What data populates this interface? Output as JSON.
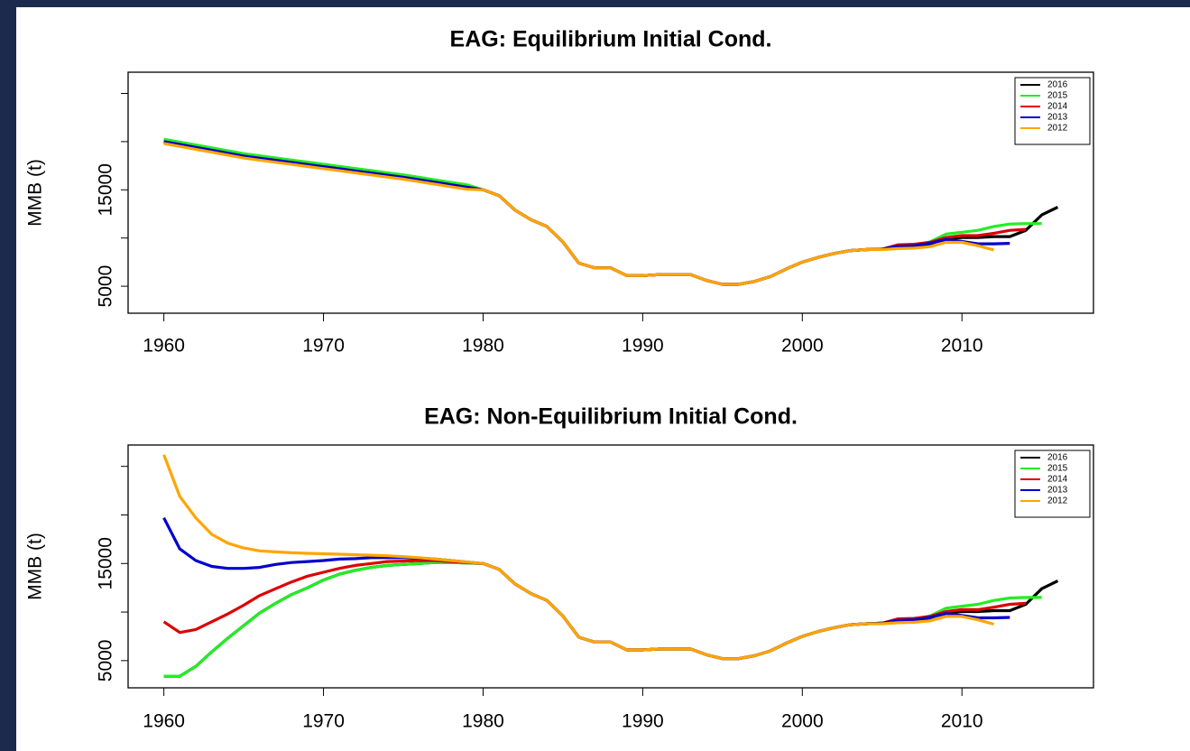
{
  "chart_data": [
    {
      "type": "line",
      "title": "EAG: Equilibrium Initial Cond.",
      "y_label": "MMB (t)",
      "x": [
        1960,
        1961,
        1962,
        1963,
        1964,
        1965,
        1966,
        1967,
        1968,
        1969,
        1970,
        1971,
        1972,
        1973,
        1974,
        1975,
        1976,
        1977,
        1978,
        1979,
        1980,
        1981,
        1982,
        1983,
        1984,
        1985,
        1986,
        1987,
        1988,
        1989,
        1990,
        1991,
        1992,
        1993,
        1994,
        1995,
        1996,
        1997,
        1998,
        1999,
        2000,
        2001,
        2002,
        2003,
        2004,
        2005,
        2006,
        2007,
        2008,
        2009,
        2010,
        2011,
        2012,
        2013,
        2014,
        2015,
        2016
      ],
      "xlim": [
        1957.76,
        2018.24
      ],
      "xticks": [
        1960,
        1970,
        1980,
        1990,
        2000,
        2010
      ],
      "ylim": [
        2200,
        27200
      ],
      "yticks": [
        5000,
        {
          "value": 10000,
          "label": null
        },
        15000,
        {
          "value": 20000,
          "label": null
        },
        {
          "value": 25000,
          "label": null
        }
      ],
      "legend": "topright",
      "series": [
        {
          "name": "2016",
          "color": "#000000",
          "values": [
            20000,
            19700,
            19400,
            19100,
            18800,
            18500,
            18280,
            18060,
            17840,
            17620,
            17400,
            17180,
            16960,
            16740,
            16520,
            16300,
            16040,
            15780,
            15520,
            15260,
            15000,
            14400,
            12900,
            11900,
            11200,
            9600,
            7400,
            6900,
            6900,
            6100,
            6100,
            6200,
            6200,
            6200,
            5600,
            5200,
            5200,
            5500,
            6000,
            6800,
            7500,
            8000,
            8400,
            8700,
            8800,
            8850,
            9100,
            9150,
            9400,
            9950,
            10050,
            10050,
            10150,
            10150,
            10800,
            12400,
            13200
          ]
        },
        {
          "name": "2015",
          "color": "#22ee22",
          "values": [
            20250,
            19950,
            19650,
            19350,
            19050,
            18750,
            18530,
            18310,
            18090,
            17870,
            17650,
            17430,
            17210,
            16990,
            16770,
            16550,
            16290,
            16030,
            15770,
            15510,
            15000,
            14400,
            12900,
            11900,
            11200,
            9600,
            7400,
            6900,
            6900,
            6100,
            6100,
            6200,
            6200,
            6200,
            5600,
            5200,
            5200,
            5500,
            6000,
            6800,
            7500,
            8000,
            8400,
            8700,
            8800,
            8850,
            9200,
            9250,
            9600,
            10400,
            10600,
            10800,
            11200,
            11450,
            11500,
            11500,
            null
          ]
        },
        {
          "name": "2014",
          "color": "#dd0000",
          "values": [
            20000,
            19700,
            19400,
            19100,
            18800,
            18500,
            18280,
            18060,
            17840,
            17620,
            17400,
            17180,
            16960,
            16740,
            16520,
            16300,
            16040,
            15780,
            15520,
            15260,
            15000,
            14400,
            12900,
            11900,
            11200,
            9600,
            7400,
            6900,
            6900,
            6100,
            6100,
            6200,
            6200,
            6200,
            5600,
            5200,
            5200,
            5500,
            6000,
            6800,
            7500,
            8000,
            8400,
            8700,
            8800,
            8850,
            9300,
            9350,
            9550,
            10050,
            10250,
            10250,
            10500,
            10800,
            10900,
            null,
            null
          ]
        },
        {
          "name": "2013",
          "color": "#0000cc",
          "values": [
            20000,
            19700,
            19400,
            19100,
            18800,
            18500,
            18280,
            18060,
            17840,
            17620,
            17400,
            17180,
            16960,
            16740,
            16520,
            16300,
            16040,
            15780,
            15520,
            15260,
            15000,
            14400,
            12900,
            11900,
            11200,
            9600,
            7400,
            6900,
            6900,
            6100,
            6100,
            6200,
            6200,
            6200,
            5600,
            5200,
            5200,
            5500,
            6000,
            6800,
            7500,
            8000,
            8400,
            8700,
            8800,
            8850,
            9150,
            9200,
            9450,
            9850,
            9650,
            9400,
            9400,
            9450,
            null,
            null,
            null
          ]
        },
        {
          "name": "2012",
          "color": "#ffa500",
          "values": [
            19800,
            19500,
            19200,
            18900,
            18600,
            18300,
            18080,
            17860,
            17640,
            17420,
            17200,
            16980,
            16760,
            16540,
            16320,
            16100,
            15840,
            15580,
            15320,
            15060,
            15000,
            14400,
            12900,
            11900,
            11200,
            9600,
            7400,
            6900,
            6900,
            6100,
            6100,
            6200,
            6200,
            6200,
            5600,
            5200,
            5200,
            5500,
            6000,
            6800,
            7500,
            8000,
            8400,
            8700,
            8800,
            8800,
            8900,
            8950,
            9100,
            9550,
            9550,
            9200,
            8750,
            null,
            null,
            null,
            null
          ]
        }
      ]
    },
    {
      "type": "line",
      "title": "EAG: Non-Equilibrium Initial Cond.",
      "y_label": "MMB (t)",
      "x": [
        1960,
        1961,
        1962,
        1963,
        1964,
        1965,
        1966,
        1967,
        1968,
        1969,
        1970,
        1971,
        1972,
        1973,
        1974,
        1975,
        1976,
        1977,
        1978,
        1979,
        1980,
        1981,
        1982,
        1983,
        1984,
        1985,
        1986,
        1987,
        1988,
        1989,
        1990,
        1991,
        1992,
        1993,
        1994,
        1995,
        1996,
        1997,
        1998,
        1999,
        2000,
        2001,
        2002,
        2003,
        2004,
        2005,
        2006,
        2007,
        2008,
        2009,
        2010,
        2011,
        2012,
        2013,
        2014,
        2015,
        2016
      ],
      "xlim": [
        1957.76,
        2018.24
      ],
      "xticks": [
        1960,
        1970,
        1980,
        1990,
        2000,
        2010
      ],
      "ylim": [
        2200,
        27200
      ],
      "yticks": [
        5000,
        {
          "value": 10000,
          "label": null
        },
        15000,
        {
          "value": 20000,
          "label": null
        },
        {
          "value": 25000,
          "label": null
        }
      ],
      "legend": "topright",
      "series": [
        {
          "name": "2016",
          "color": "#000000",
          "values": [
            3400,
            3400,
            4400,
            5900,
            7300,
            8600,
            9900,
            10900,
            11800,
            12500,
            13300,
            13900,
            14300,
            14600,
            14800,
            14900,
            15000,
            15100,
            15100,
            15050,
            15000,
            14400,
            12900,
            11900,
            11200,
            9600,
            7400,
            6900,
            6900,
            6100,
            6100,
            6200,
            6200,
            6200,
            5600,
            5200,
            5200,
            5500,
            6000,
            6800,
            7500,
            8000,
            8400,
            8700,
            8800,
            8850,
            9100,
            9150,
            9400,
            9950,
            10050,
            10050,
            10150,
            10150,
            10800,
            12400,
            13200
          ]
        },
        {
          "name": "2015",
          "color": "#22ee22",
          "values": [
            3400,
            3400,
            4400,
            5900,
            7300,
            8600,
            9900,
            10900,
            11800,
            12500,
            13300,
            13900,
            14300,
            14600,
            14800,
            14900,
            15000,
            15100,
            15100,
            15050,
            15000,
            14400,
            12900,
            11900,
            11200,
            9600,
            7400,
            6900,
            6900,
            6100,
            6100,
            6200,
            6200,
            6200,
            5600,
            5200,
            5200,
            5500,
            6000,
            6800,
            7500,
            8000,
            8400,
            8700,
            8800,
            8850,
            9200,
            9250,
            9600,
            10400,
            10600,
            10800,
            11200,
            11450,
            11500,
            11500,
            null
          ]
        },
        {
          "name": "2014",
          "color": "#dd0000",
          "values": [
            9000,
            7900,
            8200,
            9000,
            9800,
            10700,
            11700,
            12400,
            13100,
            13700,
            14100,
            14500,
            14800,
            15000,
            15200,
            15250,
            15300,
            15300,
            15200,
            15100,
            15000,
            14400,
            12900,
            11900,
            11200,
            9600,
            7400,
            6900,
            6900,
            6100,
            6100,
            6200,
            6200,
            6200,
            5600,
            5200,
            5200,
            5500,
            6000,
            6800,
            7500,
            8000,
            8400,
            8700,
            8800,
            8850,
            9300,
            9350,
            9550,
            10050,
            10250,
            10250,
            10500,
            10800,
            10900,
            null,
            null
          ]
        },
        {
          "name": "2013",
          "color": "#0000cc",
          "values": [
            19700,
            16500,
            15300,
            14700,
            14500,
            14500,
            14600,
            14900,
            15100,
            15200,
            15300,
            15450,
            15500,
            15600,
            15600,
            15600,
            15550,
            15450,
            15300,
            15150,
            15000,
            14400,
            12900,
            11900,
            11200,
            9600,
            7400,
            6900,
            6900,
            6100,
            6100,
            6200,
            6200,
            6200,
            5600,
            5200,
            5200,
            5500,
            6000,
            6800,
            7500,
            8000,
            8400,
            8700,
            8800,
            8850,
            9150,
            9200,
            9450,
            9850,
            9650,
            9400,
            9400,
            9450,
            null,
            null,
            null
          ]
        },
        {
          "name": "2012",
          "color": "#ffa500",
          "values": [
            26200,
            21900,
            19700,
            18000,
            17100,
            16600,
            16300,
            16200,
            16100,
            16050,
            16000,
            15950,
            15900,
            15850,
            15800,
            15700,
            15600,
            15450,
            15300,
            15150,
            15000,
            14400,
            12900,
            11900,
            11200,
            9600,
            7400,
            6900,
            6900,
            6100,
            6100,
            6200,
            6200,
            6200,
            5600,
            5200,
            5200,
            5500,
            6000,
            6800,
            7500,
            8000,
            8400,
            8700,
            8800,
            8800,
            8900,
            8950,
            9100,
            9550,
            9550,
            9200,
            8750,
            null,
            null,
            null,
            null
          ]
        }
      ]
    }
  ]
}
